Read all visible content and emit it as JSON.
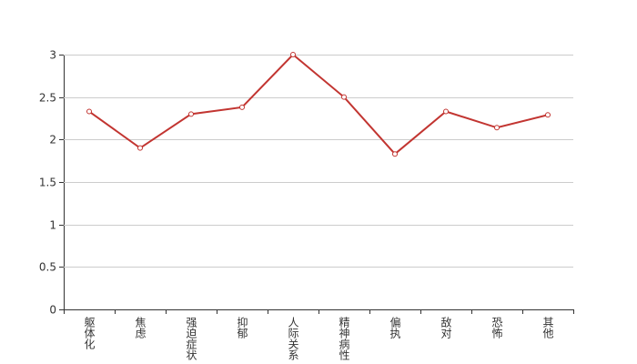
{
  "chart_data": {
    "type": "line",
    "categories": [
      "躯体化",
      "焦虑",
      "强迫症状",
      "抑郁",
      "人际关系",
      "精神病性",
      "偏执",
      "敌对",
      "恐怖",
      "其他"
    ],
    "series": [
      {
        "color": "#c23531",
        "values": [
          2.33,
          1.9,
          2.3,
          2.38,
          3.0,
          2.5,
          1.83,
          2.33,
          2.14,
          2.29
        ]
      }
    ],
    "ylim": [
      0,
      3
    ],
    "yticks": [
      0,
      0.5,
      1,
      1.5,
      2,
      2.5,
      3
    ],
    "grid": true
  }
}
